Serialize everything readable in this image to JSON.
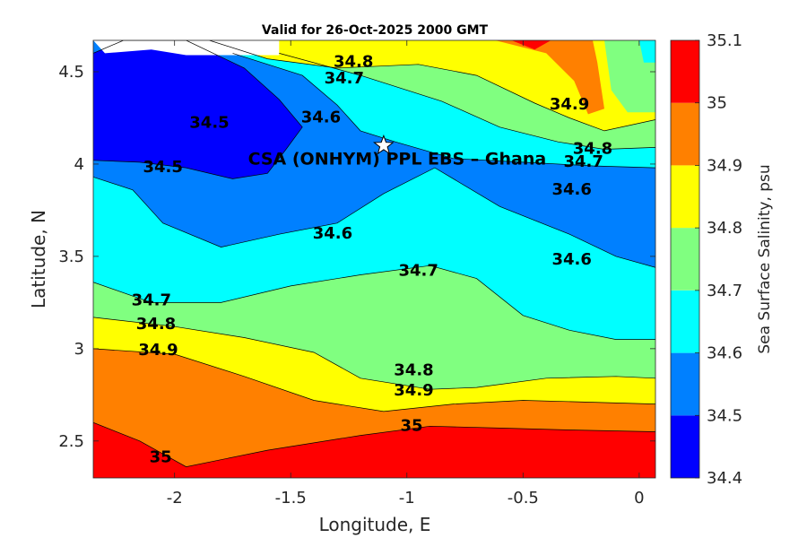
{
  "chart_data": {
    "type": "contour",
    "title": "Valid for 26-Oct-2025 2000 GMT",
    "xlabel": "Longitude, E",
    "ylabel": "Latitude, N",
    "xlim": [
      -2.35,
      0.07
    ],
    "ylim": [
      2.3,
      4.67
    ],
    "xticks": [
      -2,
      -1.5,
      -1,
      -0.5,
      0
    ],
    "xtick_labels": [
      "-2",
      "-1.5",
      "-1",
      "-0.5",
      "0"
    ],
    "yticks": [
      2.5,
      3,
      3.5,
      4,
      4.5
    ],
    "ytick_labels": [
      "2.5",
      "3",
      "3.5",
      "4",
      "4.5"
    ],
    "colorbar": {
      "label": "Sea Surface Salinity, psu",
      "range": [
        34.4,
        35.1
      ],
      "levels": [
        {
          "from": 34.4,
          "to": 34.5,
          "color": "#0000ff"
        },
        {
          "from": 34.5,
          "to": 34.6,
          "color": "#0080ff"
        },
        {
          "from": 34.6,
          "to": 34.7,
          "color": "#00ffff"
        },
        {
          "from": 34.7,
          "to": 34.8,
          "color": "#80ff80"
        },
        {
          "from": 34.8,
          "to": 34.9,
          "color": "#ffff00"
        },
        {
          "from": 34.9,
          "to": 35.0,
          "color": "#ff8000"
        },
        {
          "from": 35.0,
          "to": 35.1,
          "color": "#ff0000"
        }
      ],
      "tick_labels": [
        "34.4",
        "34.5",
        "34.6",
        "34.7",
        "34.8",
        "34.9",
        "35",
        "35.1"
      ]
    },
    "contours": [
      {
        "level": 35.0,
        "points": [
          [
            -2.35,
            2.6
          ],
          [
            -2.15,
            2.5
          ],
          [
            -1.95,
            2.36
          ],
          [
            -1.6,
            2.45
          ],
          [
            -1.2,
            2.53
          ],
          [
            -0.9,
            2.58
          ],
          [
            -0.6,
            2.57
          ],
          [
            -0.3,
            2.56
          ],
          [
            0.07,
            2.55
          ]
        ]
      },
      {
        "level": 34.9,
        "points": [
          [
            -2.35,
            3.0
          ],
          [
            -2.0,
            2.97
          ],
          [
            -1.7,
            2.85
          ],
          [
            -1.4,
            2.72
          ],
          [
            -1.1,
            2.66
          ],
          [
            -0.8,
            2.7
          ],
          [
            -0.5,
            2.72
          ],
          [
            -0.2,
            2.71
          ],
          [
            0.07,
            2.7
          ]
        ]
      },
      {
        "level": 34.8,
        "points": [
          [
            -2.35,
            3.17
          ],
          [
            -2.0,
            3.12
          ],
          [
            -1.7,
            3.06
          ],
          [
            -1.4,
            2.98
          ],
          [
            -1.2,
            2.84
          ],
          [
            -0.9,
            2.78
          ],
          [
            -0.7,
            2.79
          ],
          [
            -0.4,
            2.84
          ],
          [
            -0.1,
            2.85
          ],
          [
            0.07,
            2.84
          ]
        ]
      },
      {
        "level": 34.7,
        "points": [
          [
            -2.35,
            3.36
          ],
          [
            -2.1,
            3.25
          ],
          [
            -1.8,
            3.25
          ],
          [
            -1.5,
            3.34
          ],
          [
            -1.2,
            3.4
          ],
          [
            -0.9,
            3.45
          ],
          [
            -0.7,
            3.38
          ],
          [
            -0.5,
            3.18
          ],
          [
            -0.3,
            3.1
          ],
          [
            -0.1,
            3.05
          ],
          [
            0.07,
            3.05
          ]
        ]
      },
      {
        "level": 34.6,
        "points": [
          [
            -2.35,
            3.93
          ],
          [
            -2.18,
            3.86
          ],
          [
            -2.05,
            3.68
          ],
          [
            -1.8,
            3.55
          ],
          [
            -1.55,
            3.62
          ],
          [
            -1.3,
            3.68
          ],
          [
            -1.1,
            3.84
          ],
          [
            -0.88,
            3.98
          ],
          [
            -0.6,
            3.77
          ],
          [
            -0.3,
            3.62
          ],
          [
            -0.1,
            3.5
          ],
          [
            0.07,
            3.44
          ]
        ]
      },
      {
        "level": 34.6,
        "points": [
          [
            -1.75,
            4.6
          ],
          [
            -1.45,
            4.48
          ],
          [
            -1.3,
            4.32
          ],
          [
            -1.2,
            4.18
          ],
          [
            -1.05,
            4.12
          ],
          [
            -0.8,
            4.03
          ],
          [
            -0.5,
            4.01
          ],
          [
            -0.2,
            3.99
          ],
          [
            0.07,
            3.98
          ]
        ]
      },
      {
        "level": 34.7,
        "points": [
          [
            -1.55,
            4.6
          ],
          [
            -1.2,
            4.48
          ],
          [
            -0.85,
            4.34
          ],
          [
            -0.6,
            4.2
          ],
          [
            -0.35,
            4.12
          ],
          [
            -0.15,
            4.08
          ],
          [
            0.07,
            4.09
          ]
        ]
      },
      {
        "level": 34.8,
        "points": [
          [
            -1.85,
            4.67
          ],
          [
            -1.6,
            4.57
          ],
          [
            -1.3,
            4.52
          ],
          [
            -0.95,
            4.54
          ],
          [
            -0.7,
            4.48
          ],
          [
            -0.45,
            4.33
          ],
          [
            -0.3,
            4.25
          ],
          [
            -0.15,
            4.18
          ],
          [
            0.07,
            4.24
          ]
        ]
      }
    ],
    "contour_labels": [
      {
        "text": "34.8",
        "x": -1.23,
        "y": 4.55
      },
      {
        "text": "34.7",
        "x": -1.27,
        "y": 4.46
      },
      {
        "text": "34.6",
        "x": -1.37,
        "y": 4.25
      },
      {
        "text": "34.5",
        "x": -1.85,
        "y": 4.22
      },
      {
        "text": "34.5",
        "x": -2.05,
        "y": 3.98
      },
      {
        "text": "34.9",
        "x": -0.3,
        "y": 4.32
      },
      {
        "text": "34.8",
        "x": -0.2,
        "y": 4.08
      },
      {
        "text": "34.7",
        "x": -0.24,
        "y": 4.01
      },
      {
        "text": "34.6",
        "x": -0.29,
        "y": 3.86
      },
      {
        "text": "34.6",
        "x": -1.32,
        "y": 3.62
      },
      {
        "text": "34.6",
        "x": -0.29,
        "y": 3.48
      },
      {
        "text": "34.7",
        "x": -0.95,
        "y": 3.42
      },
      {
        "text": "34.7",
        "x": -2.1,
        "y": 3.26
      },
      {
        "text": "34.8",
        "x": -2.08,
        "y": 3.13
      },
      {
        "text": "34.9",
        "x": -2.07,
        "y": 2.99
      },
      {
        "text": "34.8",
        "x": -0.97,
        "y": 2.88
      },
      {
        "text": "34.9",
        "x": -0.97,
        "y": 2.77
      },
      {
        "text": "35",
        "x": -0.98,
        "y": 2.58
      },
      {
        "text": "35",
        "x": -2.06,
        "y": 2.41
      }
    ],
    "annotation": {
      "text": "CSA (ONHYM) PPL EBS  – Ghana",
      "marker": "star",
      "x": -1.1,
      "y": 4.1
    }
  }
}
